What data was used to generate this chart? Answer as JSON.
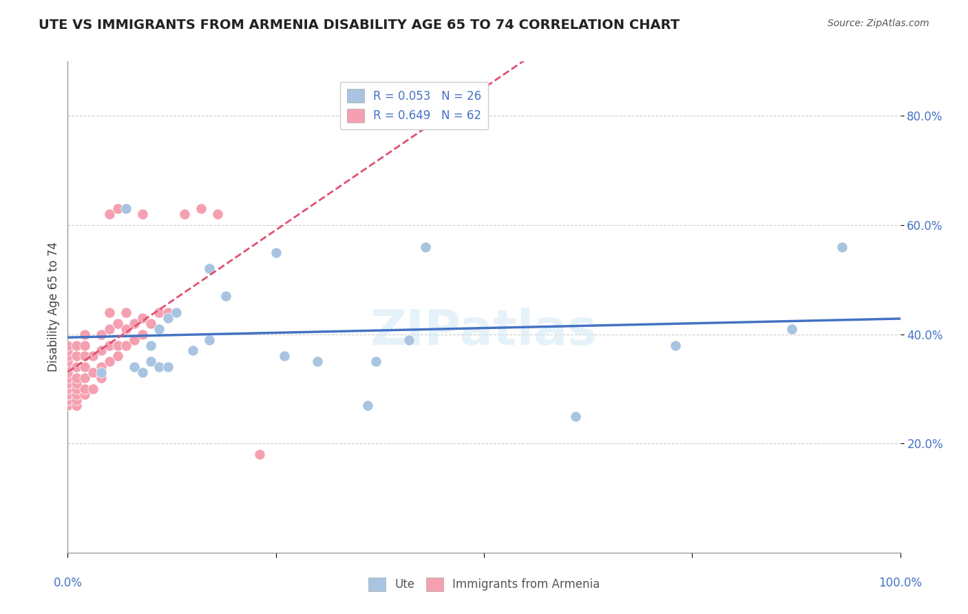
{
  "title": "UTE VS IMMIGRANTS FROM ARMENIA DISABILITY AGE 65 TO 74 CORRELATION CHART",
  "source": "Source: ZipAtlas.com",
  "ylabel": "Disability Age 65 to 74",
  "watermark": "ZIPatlas",
  "ute_R": 0.053,
  "ute_N": 26,
  "armenia_R": 0.649,
  "armenia_N": 62,
  "xlim": [
    0.0,
    1.0
  ],
  "ylim": [
    0.0,
    0.9
  ],
  "y_ticks": [
    0.2,
    0.4,
    0.6,
    0.8
  ],
  "y_tick_labels": [
    "20.0%",
    "40.0%",
    "60.0%",
    "80.0%"
  ],
  "ute_color": "#a8c4e0",
  "armenia_color": "#f4a0b0",
  "ute_line_color": "#4472c4",
  "armenia_line_color": "#e05070",
  "grid_color": "#cccccc",
  "text_color_blue": "#4472c4",
  "title_color": "#222222",
  "ute_x": [
    0.04,
    0.07,
    0.08,
    0.09,
    0.1,
    0.1,
    0.11,
    0.11,
    0.12,
    0.12,
    0.13,
    0.15,
    0.17,
    0.17,
    0.19,
    0.25,
    0.26,
    0.3,
    0.36,
    0.37,
    0.41,
    0.43,
    0.61,
    0.73,
    0.87,
    0.93
  ],
  "ute_y": [
    0.33,
    0.63,
    0.34,
    0.33,
    0.35,
    0.38,
    0.34,
    0.41,
    0.34,
    0.43,
    0.44,
    0.37,
    0.39,
    0.52,
    0.47,
    0.55,
    0.36,
    0.35,
    0.27,
    0.35,
    0.39,
    0.56,
    0.25,
    0.38,
    0.41,
    0.56
  ],
  "armenia_x": [
    0.0,
    0.0,
    0.0,
    0.0,
    0.0,
    0.0,
    0.0,
    0.0,
    0.0,
    0.0,
    0.0,
    0.0,
    0.0,
    0.0,
    0.0,
    0.01,
    0.01,
    0.01,
    0.01,
    0.01,
    0.01,
    0.01,
    0.01,
    0.01,
    0.02,
    0.02,
    0.02,
    0.02,
    0.02,
    0.02,
    0.02,
    0.03,
    0.03,
    0.03,
    0.04,
    0.04,
    0.04,
    0.04,
    0.05,
    0.05,
    0.05,
    0.05,
    0.05,
    0.06,
    0.06,
    0.06,
    0.06,
    0.07,
    0.07,
    0.07,
    0.08,
    0.08,
    0.09,
    0.09,
    0.09,
    0.1,
    0.11,
    0.12,
    0.14,
    0.16,
    0.18,
    0.23
  ],
  "armenia_y": [
    0.27,
    0.28,
    0.28,
    0.29,
    0.29,
    0.3,
    0.31,
    0.31,
    0.32,
    0.33,
    0.34,
    0.35,
    0.36,
    0.37,
    0.38,
    0.27,
    0.28,
    0.29,
    0.3,
    0.31,
    0.32,
    0.34,
    0.36,
    0.38,
    0.29,
    0.3,
    0.32,
    0.34,
    0.36,
    0.38,
    0.4,
    0.3,
    0.33,
    0.36,
    0.32,
    0.34,
    0.37,
    0.4,
    0.35,
    0.38,
    0.41,
    0.44,
    0.62,
    0.36,
    0.38,
    0.42,
    0.63,
    0.38,
    0.41,
    0.44,
    0.39,
    0.42,
    0.4,
    0.43,
    0.62,
    0.42,
    0.44,
    0.44,
    0.62,
    0.63,
    0.62,
    0.18
  ]
}
